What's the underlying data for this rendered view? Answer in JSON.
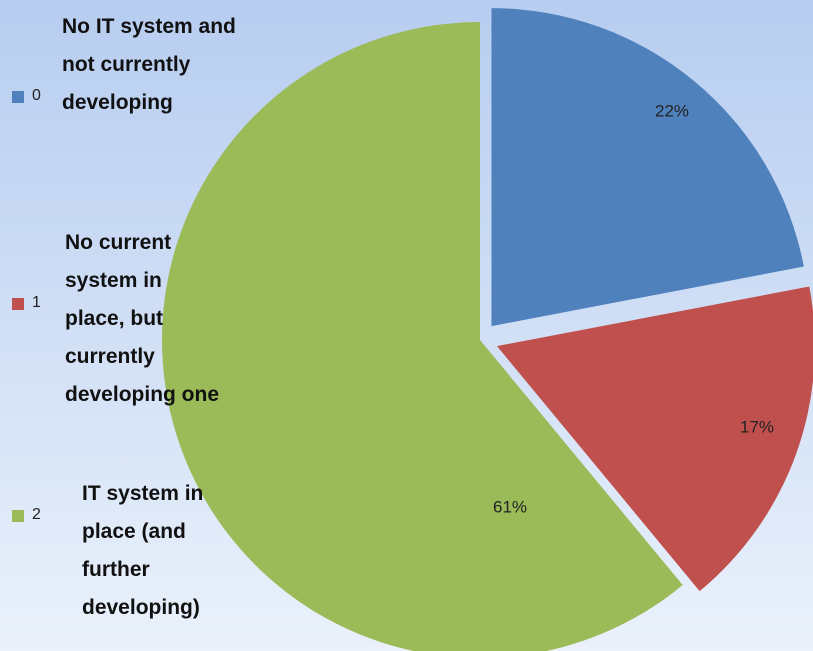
{
  "chart_data": {
    "type": "pie",
    "categories": [
      "0",
      "1",
      "2"
    ],
    "legend_labels": [
      "No IT system and not currently developing",
      "No current system in place, but currently developing one",
      "IT system in place (and further developing)"
    ],
    "values": [
      22,
      17,
      61
    ],
    "value_labels": [
      "22%",
      "17%",
      "61%"
    ],
    "colors": [
      "#4f81bd",
      "#c0504d",
      "#9bbb59"
    ],
    "legend": "left"
  }
}
